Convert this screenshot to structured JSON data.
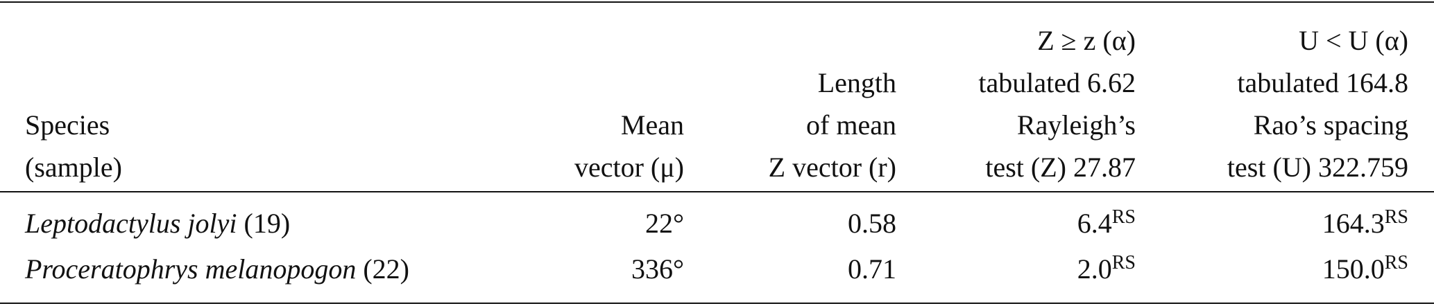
{
  "table": {
    "header": [
      [
        "Species",
        "(sample)"
      ],
      [
        "Mean",
        "vector (μ)"
      ],
      [
        "Length",
        "of mean",
        "Z vector (r)"
      ],
      [
        "Z ≥ z (α)",
        "tabulated 6.62",
        "Rayleigh’s",
        "test (Z) 27.87"
      ],
      [
        "U < U (α)",
        "tabulated 164.8",
        "Rao’s spacing",
        "test (U) 322.759"
      ]
    ],
    "rows": [
      {
        "species": "Leptodactylus jolyi",
        "sample": "(19)",
        "mean_vector": "22°",
        "length": "0.58",
        "rayleigh": "6.4",
        "rayleigh_sup": "RS",
        "rao": "164.3",
        "rao_sup": "RS"
      },
      {
        "species": "Proceratophrys melanopogon",
        "sample": "(22)",
        "mean_vector": "336°",
        "length": "0.71",
        "rayleigh": "2.0",
        "rayleigh_sup": "RS",
        "rao": "150.0",
        "rao_sup": "RS"
      }
    ]
  }
}
